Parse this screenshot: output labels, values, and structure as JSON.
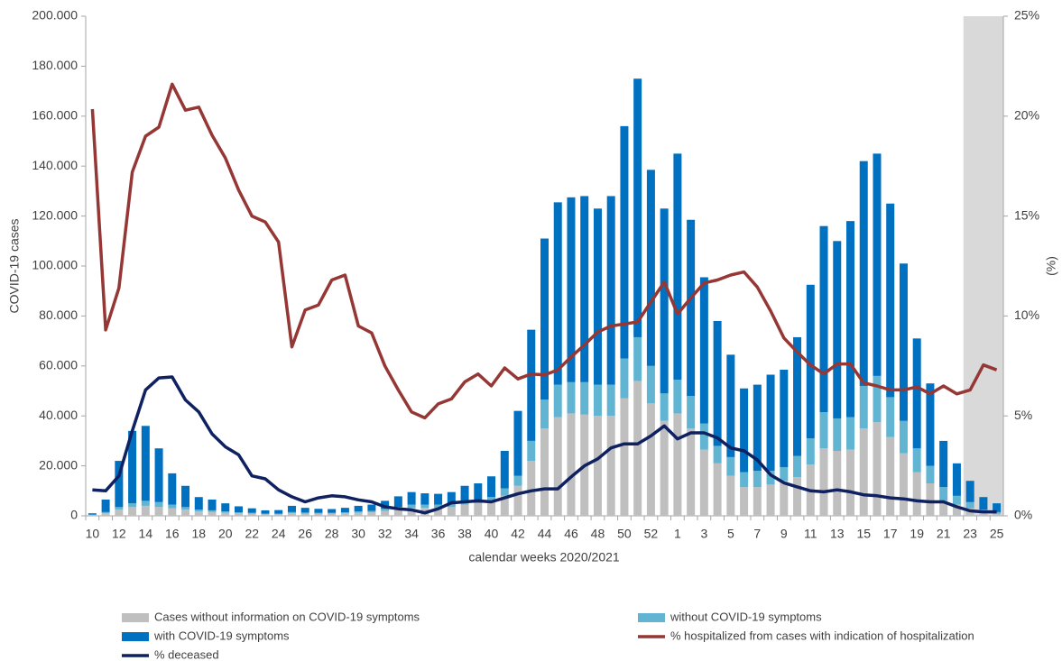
{
  "chart_data": {
    "type": "bar",
    "stacked": true,
    "y_label": "COVID-19 cases",
    "y2_label": "(%)",
    "x_label": "calendar weeks 2020/2021",
    "categories": [
      "10",
      null,
      "12",
      null,
      "14",
      null,
      "16",
      null,
      "18",
      null,
      "20",
      null,
      "22",
      null,
      "24",
      null,
      "26",
      null,
      "28",
      null,
      "30",
      null,
      "32",
      null,
      "34",
      null,
      "36",
      null,
      "38",
      null,
      "40",
      null,
      "42",
      null,
      "44",
      null,
      "46",
      null,
      "48",
      null,
      "50",
      null,
      "52",
      null,
      "1",
      null,
      "3",
      null,
      "5",
      null,
      "7",
      null,
      "9",
      null,
      "11",
      null,
      "13",
      null,
      "15",
      null,
      "17",
      null,
      "19",
      null,
      "21",
      null,
      "23",
      null,
      "25"
    ],
    "ylim": [
      0,
      200000
    ],
    "yticks": [
      0,
      {
        "value": 20000,
        "label": "20.000"
      },
      {
        "value": 40000,
        "label": "40.000"
      },
      {
        "value": 60000,
        "label": "60.000"
      },
      {
        "value": 80000,
        "label": "80.000"
      },
      {
        "value": 100000,
        "label": "100.000"
      },
      {
        "value": 120000,
        "label": "120.000"
      },
      {
        "value": 140000,
        "label": "140.000"
      },
      {
        "value": 160000,
        "label": "160.000"
      },
      {
        "value": 180000,
        "label": "180.000"
      },
      {
        "value": 200000,
        "label": "200.000"
      }
    ],
    "y2lim": [
      0,
      25
    ],
    "y2ticks": [
      {
        "value": 0,
        "label": "0%"
      },
      {
        "value": 5,
        "label": "5%"
      },
      {
        "value": 10,
        "label": "10%"
      },
      {
        "value": 15,
        "label": "15%"
      },
      {
        "value": 20,
        "label": "20%"
      },
      {
        "value": 25,
        "label": "25%"
      }
    ],
    "series": [
      {
        "name": "Cases without information on COVID-19 symptoms",
        "type": "bar",
        "color": "#bfbfbf",
        "values": [
          300,
          1000,
          2500,
          3500,
          4000,
          3500,
          3000,
          2500,
          1800,
          1500,
          1200,
          1000,
          800,
          600,
          600,
          1000,
          900,
          800,
          800,
          1000,
          1200,
          1400,
          2000,
          2500,
          3200,
          3200,
          3300,
          3500,
          4500,
          5000,
          5500,
          8000,
          12000,
          22000,
          35000,
          39500,
          41000,
          40500,
          40000,
          40000,
          47000,
          54000,
          45000,
          38000,
          41000,
          35000,
          26500,
          21000,
          16000,
          11500,
          11500,
          12500,
          14000,
          15500,
          20500,
          27000,
          26000,
          26500,
          35000,
          37500,
          31500,
          25000,
          17500,
          13000,
          6000,
          4500,
          3000,
          1200,
          800
        ]
      },
      {
        "name": "without COVID-19 symptoms",
        "type": "bar",
        "color": "#62b5d2",
        "values": [
          200,
          500,
          1000,
          1500,
          2000,
          2000,
          1500,
          1000,
          700,
          700,
          600,
          400,
          400,
          300,
          300,
          500,
          400,
          400,
          400,
          400,
          600,
          600,
          800,
          1000,
          1300,
          1300,
          1200,
          1500,
          1500,
          1500,
          2000,
          3000,
          4000,
          8000,
          11500,
          13000,
          12500,
          13000,
          12500,
          12500,
          16000,
          17500,
          15000,
          11000,
          13500,
          13000,
          10500,
          7000,
          7500,
          6000,
          6500,
          5500,
          5500,
          8500,
          10500,
          14500,
          13000,
          13000,
          17000,
          18500,
          16000,
          13000,
          9500,
          7000,
          5500,
          3500,
          2500,
          1300,
          700
        ]
      },
      {
        "name": "with COVID-19 symptoms",
        "type": "bar",
        "color": "#0070c0",
        "values": [
          500,
          5000,
          18500,
          29000,
          30000,
          21500,
          12500,
          8500,
          5000,
          4300,
          3200,
          2400,
          1800,
          1300,
          1400,
          2500,
          1900,
          1600,
          1500,
          1800,
          2200,
          2500,
          3200,
          4300,
          5000,
          4500,
          4300,
          4500,
          6000,
          6500,
          8300,
          15000,
          26000,
          44500,
          64500,
          73000,
          74000,
          74500,
          70500,
          75500,
          93000,
          103500,
          78500,
          74000,
          90500,
          70500,
          58500,
          50000,
          41000,
          33500,
          34500,
          38500,
          39000,
          47500,
          61500,
          74500,
          71000,
          78500,
          90000,
          89000,
          77500,
          63000,
          44000,
          33000,
          18500,
          13000,
          8500,
          5000,
          3500
        ]
      },
      {
        "name": "% hospitalized from cases with indication of hospitalization",
        "type": "line",
        "axis": "y2",
        "color": "#953735",
        "values": [
          20.35,
          9.3,
          11.4,
          17.2,
          19.0,
          19.45,
          21.6,
          20.3,
          20.45,
          19.05,
          17.9,
          16.3,
          15.0,
          14.7,
          13.7,
          8.45,
          10.3,
          10.55,
          11.8,
          12.05,
          9.5,
          9.15,
          7.5,
          6.3,
          5.2,
          4.9,
          5.6,
          5.85,
          6.7,
          7.1,
          6.5,
          7.4,
          6.85,
          7.1,
          7.05,
          7.3,
          7.95,
          8.55,
          9.2,
          9.5,
          9.6,
          9.7,
          10.7,
          11.7,
          10.1,
          10.9,
          11.65,
          11.8,
          12.05,
          12.2,
          11.45,
          10.25,
          8.9,
          8.2,
          7.55,
          7.1,
          7.6,
          7.6,
          6.65,
          6.5,
          6.3,
          6.3,
          6.45,
          6.1,
          6.5,
          6.1,
          6.3,
          7.55,
          7.3
        ]
      },
      {
        "name": "% deceased",
        "type": "line",
        "axis": "y2",
        "color": "#0f2160",
        "values": [
          1.3,
          1.25,
          2.0,
          4.25,
          6.3,
          6.9,
          6.95,
          5.8,
          5.2,
          4.1,
          3.45,
          3.05,
          2.0,
          1.85,
          1.3,
          0.95,
          0.7,
          0.9,
          1.0,
          0.95,
          0.8,
          0.7,
          0.45,
          0.35,
          0.3,
          0.15,
          0.35,
          0.65,
          0.7,
          0.75,
          0.7,
          0.9,
          1.1,
          1.25,
          1.35,
          1.35,
          1.95,
          2.5,
          2.85,
          3.4,
          3.6,
          3.6,
          4.0,
          4.5,
          3.85,
          4.15,
          4.15,
          3.9,
          3.4,
          3.25,
          2.8,
          2.05,
          1.65,
          1.45,
          1.25,
          1.2,
          1.3,
          1.2,
          1.05,
          1.0,
          0.9,
          0.85,
          0.75,
          0.7,
          0.7,
          0.45,
          0.25,
          0.2,
          0.2
        ]
      }
    ]
  }
}
